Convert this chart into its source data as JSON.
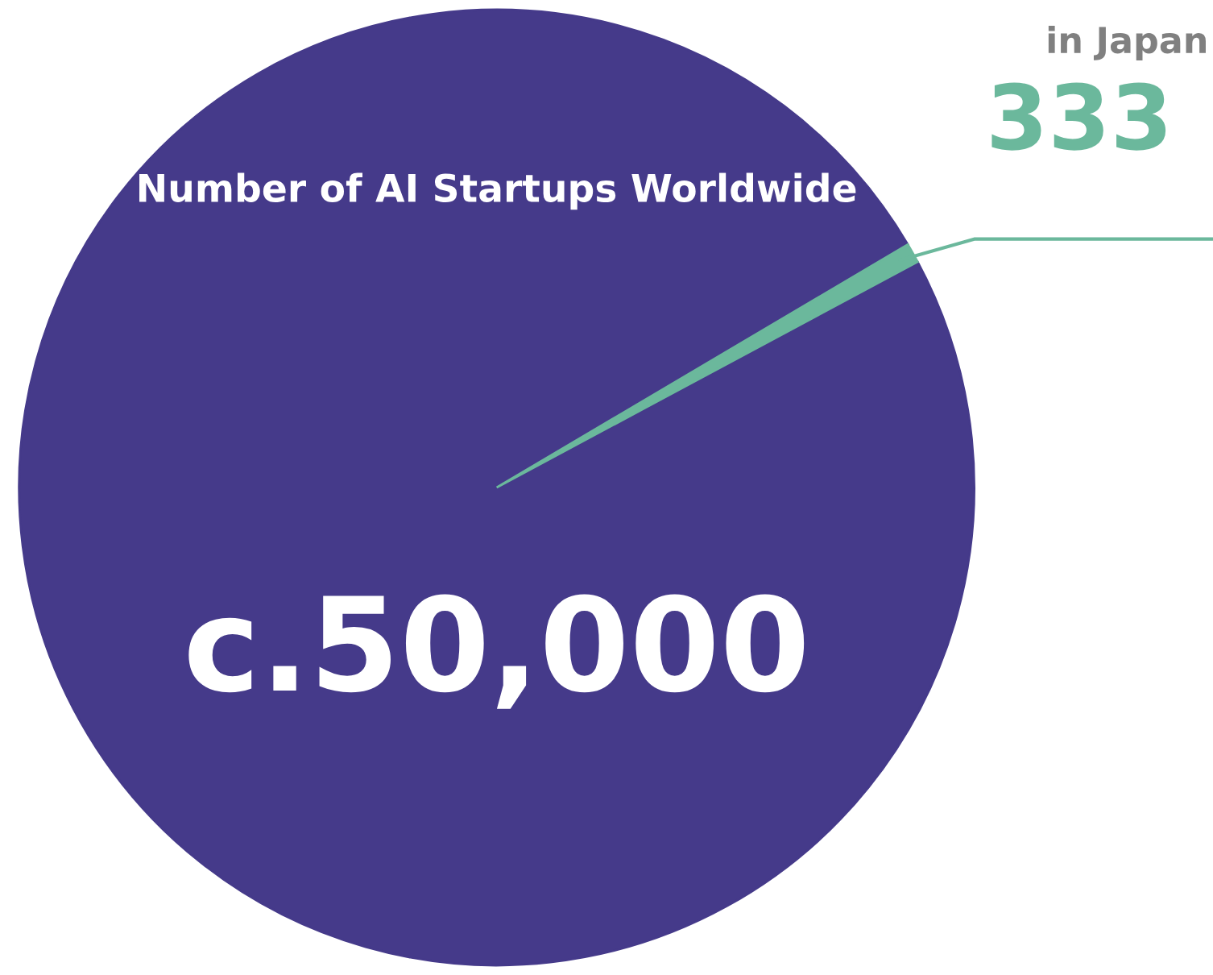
{
  "chart_data": {
    "type": "pie",
    "title": "Number of AI Startups Worldwide",
    "categories": [
      null,
      "in Japan"
    ],
    "values": [
      50000,
      333
    ],
    "value_labels": [
      "c.50,000",
      "333"
    ],
    "colors": [
      "#453a8a",
      "#6bb89c"
    ],
    "legend": false
  }
}
